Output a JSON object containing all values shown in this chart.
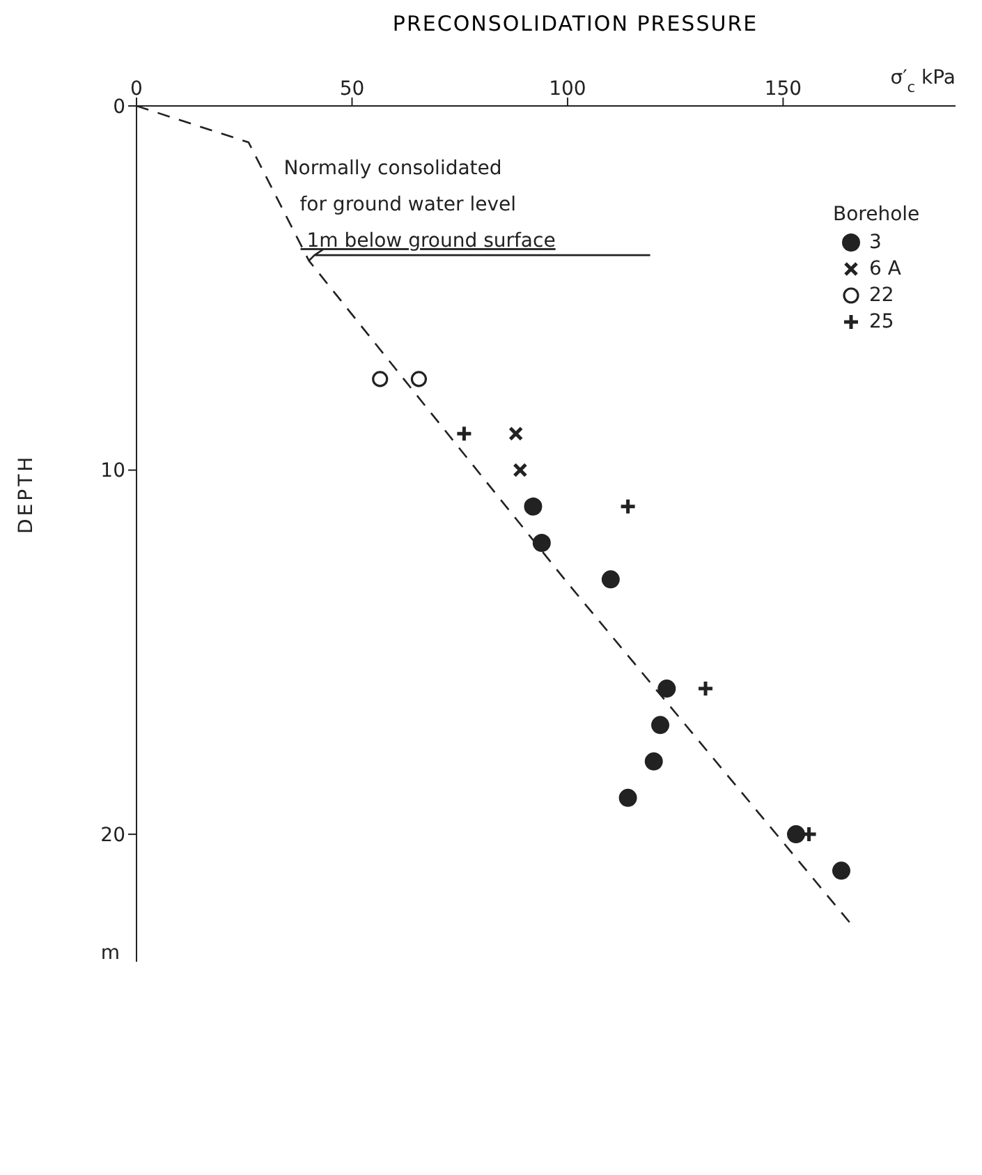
{
  "chart_data": {
    "type": "scatter",
    "title": "PRECONSOLIDATION PRESSURE",
    "xlabel": "σ′$_{c}$ kPa",
    "ylabel": "DEPTH",
    "legend_title": "Borehole",
    "legend": "top right",
    "xlim": [
      0,
      190
    ],
    "xticks": [
      0,
      50,
      100,
      150
    ],
    "ylim": [
      23.5,
      0
    ],
    "yticks": [
      0,
      10,
      20
    ],
    "series": [
      {
        "name": "3",
        "color": "#222222",
        "marker": "circle",
        "x": [
          92,
          94,
          110,
          123,
          121.5,
          120,
          114,
          153,
          163.5
        ],
        "values": [
          11,
          12,
          13,
          16,
          17,
          18,
          19,
          20,
          21
        ]
      },
      {
        "name": "6 A",
        "color": "#222222",
        "marker": "cross",
        "x": [
          88,
          89
        ],
        "values": [
          9,
          10
        ]
      },
      {
        "name": "22",
        "color": "#222222",
        "marker": "circle_open",
        "x": [
          56.5,
          65.5
        ],
        "values": [
          7.5,
          7.5
        ]
      },
      {
        "name": "25",
        "color": "#222222",
        "marker": "plus",
        "x": [
          76,
          114,
          132,
          156
        ],
        "values": [
          9,
          11,
          16,
          20
        ]
      },
      {
        "type": "line",
        "color": "#222222",
        "line_style": "dashed",
        "marker": "none",
        "x": [
          0,
          26,
          40,
          62,
          100,
          166
        ],
        "values": [
          0,
          1,
          4.25,
          7.5,
          13.1,
          22.5
        ]
      }
    ],
    "annotations": [
      {
        "text": "Normally consolidated\nfor ground water level\n1m below ground surface",
        "x": 40,
        "y": 4.25
      },
      "m"
    ]
  }
}
